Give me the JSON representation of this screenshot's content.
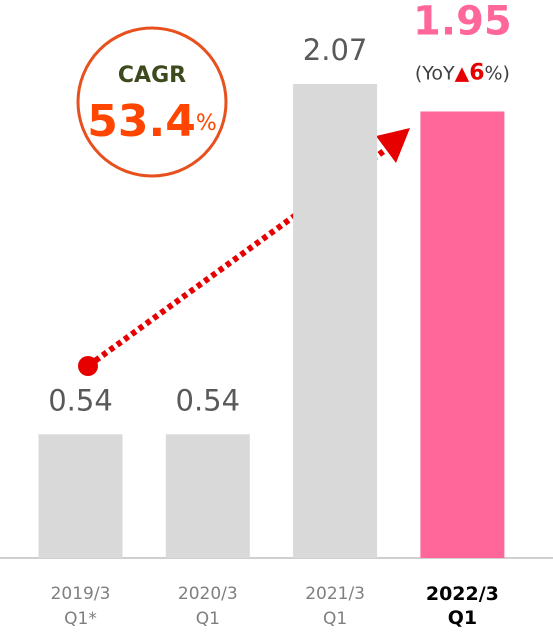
{
  "chart_data": {
    "type": "bar",
    "categories": [
      "2019/3\nQ1*",
      "2020/3\nQ1",
      "2021/3\nQ1",
      "2022/3\nQ1"
    ],
    "values": [
      0.54,
      0.54,
      2.07,
      1.95
    ],
    "colors": [
      "#d9d9d9",
      "#d9d9d9",
      "#d9d9d9",
      "#ff6699"
    ],
    "annotations": {
      "cagr": {
        "label": "CAGR",
        "value": 53.4,
        "unit": "%"
      },
      "yoy": {
        "prefix": "(YoY",
        "symbol": "▲",
        "value": 6,
        "suffix": "%)"
      }
    }
  }
}
